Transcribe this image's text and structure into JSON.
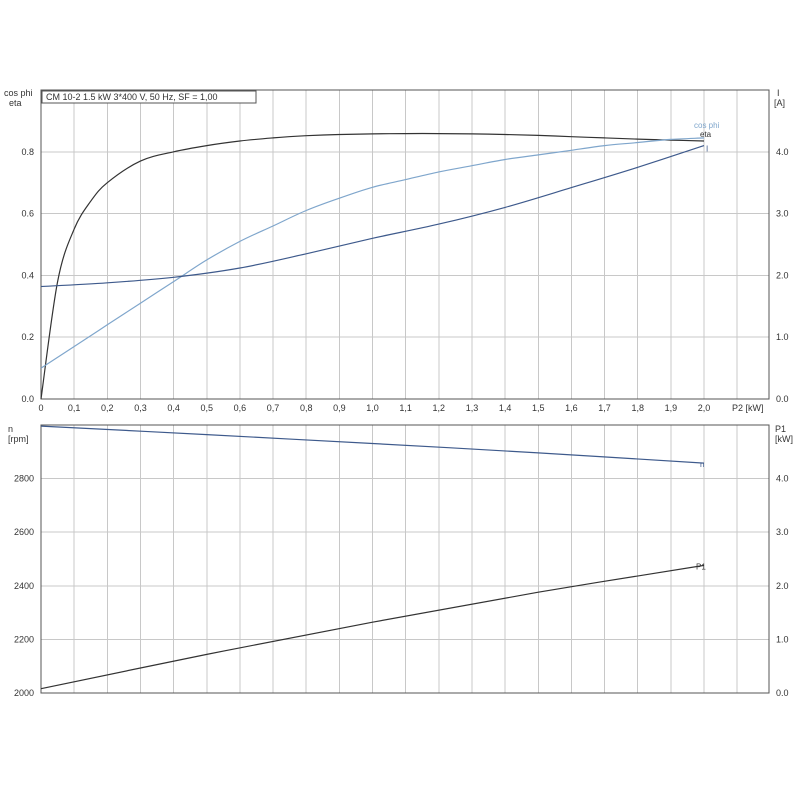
{
  "chart_data": [
    {
      "type": "line",
      "subtitle": "CM 10-2   1.5 kW   3*400 V, 50 Hz, SF = 1,00",
      "xlabel": "P2 [kW]",
      "xlim": [
        0,
        2.2
      ],
      "x_ticks": [
        "0",
        "0,1",
        "0,2",
        "0,3",
        "0,4",
        "0,5",
        "0,6",
        "0,7",
        "0,8",
        "0,9",
        "1,0",
        "1,1",
        "1,2",
        "1,3",
        "1,4",
        "1,5",
        "1,6",
        "1,7",
        "1,8",
        "1,9",
        "2,0"
      ],
      "y_left": {
        "label_lines": [
          "cos phi",
          "eta"
        ],
        "lim": [
          0,
          1.0
        ],
        "ticks": [
          "0.0",
          "0.2",
          "0.4",
          "0.6",
          "0.8"
        ]
      },
      "y_right": {
        "label_lines": [
          "I",
          "[A]"
        ],
        "lim": [
          0,
          5.0
        ],
        "ticks": [
          "0.0",
          "1.0",
          "2.0",
          "3.0",
          "4.0"
        ]
      },
      "grid": true,
      "series": [
        {
          "name": "eta",
          "axis": "left",
          "color": "#333333",
          "x": [
            0,
            0.05,
            0.1,
            0.15,
            0.2,
            0.3,
            0.4,
            0.5,
            0.6,
            0.7,
            0.8,
            0.9,
            1.0,
            1.1,
            1.2,
            1.3,
            1.4,
            1.5,
            1.6,
            1.7,
            1.8,
            1.9,
            2.0
          ],
          "y": [
            0,
            0.38,
            0.55,
            0.64,
            0.7,
            0.77,
            0.8,
            0.82,
            0.835,
            0.845,
            0.852,
            0.856,
            0.858,
            0.859,
            0.859,
            0.858,
            0.856,
            0.853,
            0.849,
            0.845,
            0.841,
            0.838,
            0.835
          ]
        },
        {
          "name": "cos phi",
          "axis": "left",
          "color": "#7fa6cc",
          "x": [
            0,
            0.1,
            0.2,
            0.3,
            0.4,
            0.5,
            0.6,
            0.7,
            0.8,
            0.9,
            1.0,
            1.1,
            1.2,
            1.3,
            1.4,
            1.5,
            1.6,
            1.7,
            1.8,
            1.9,
            2.0
          ],
          "y": [
            0.1,
            0.17,
            0.24,
            0.31,
            0.38,
            0.45,
            0.51,
            0.56,
            0.61,
            0.65,
            0.685,
            0.71,
            0.735,
            0.755,
            0.775,
            0.79,
            0.805,
            0.82,
            0.83,
            0.84,
            0.845
          ]
        },
        {
          "name": "I",
          "axis": "right",
          "color": "#3e5a8c",
          "x": [
            0,
            0.2,
            0.4,
            0.6,
            0.8,
            1.0,
            1.2,
            1.4,
            1.6,
            1.8,
            2.0
          ],
          "y": [
            1.82,
            1.88,
            1.97,
            2.12,
            2.35,
            2.6,
            2.83,
            3.1,
            3.42,
            3.75,
            4.1
          ]
        }
      ]
    },
    {
      "type": "line",
      "xlim": [
        0,
        2.2
      ],
      "y_left": {
        "label_lines": [
          "n",
          "[rpm]"
        ],
        "lim": [
          2000,
          3000
        ],
        "ticks": [
          "2000",
          "2200",
          "2400",
          "2600",
          "2800"
        ]
      },
      "y_right": {
        "label_lines": [
          "P1",
          "[kW]"
        ],
        "lim": [
          0,
          5.0
        ],
        "ticks": [
          "0.0",
          "1.0",
          "2.0",
          "3.0",
          "4.0"
        ]
      },
      "grid": true,
      "series": [
        {
          "name": "n",
          "axis": "left",
          "color": "#3e5a8c",
          "x": [
            0,
            0.5,
            1.0,
            1.5,
            2.0
          ],
          "y": [
            2996,
            2964,
            2931,
            2896,
            2858
          ]
        },
        {
          "name": "P1",
          "axis": "right",
          "color": "#333333",
          "x": [
            0,
            0.5,
            1.0,
            1.5,
            2.0
          ],
          "y": [
            0.08,
            0.72,
            1.32,
            1.88,
            2.38
          ]
        }
      ]
    }
  ]
}
